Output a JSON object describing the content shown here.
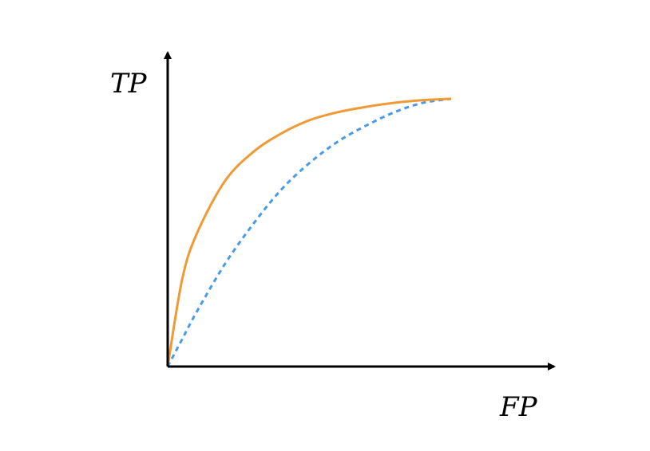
{
  "chart_data": {
    "type": "line",
    "title": "",
    "xlabel": "FP",
    "ylabel": "TP",
    "grid": false,
    "xlim": [
      0,
      1
    ],
    "ylim": [
      0,
      1
    ],
    "series": [
      {
        "style": "solid",
        "color": "#f09a35",
        "x": [
          0,
          0.05,
          0.1,
          0.2,
          0.3,
          0.4,
          0.5,
          0.6,
          0.7,
          0.8,
          0.9,
          1.0
        ],
        "y": [
          0,
          0.32,
          0.49,
          0.69,
          0.8,
          0.87,
          0.92,
          0.95,
          0.97,
          0.985,
          0.995,
          1.0
        ]
      },
      {
        "style": "dashed",
        "color": "#4a9be6",
        "x": [
          0,
          0.05,
          0.1,
          0.2,
          0.3,
          0.4,
          0.5,
          0.6,
          0.7,
          0.8,
          0.9,
          1.0
        ],
        "y": [
          0,
          0.1,
          0.2,
          0.38,
          0.53,
          0.66,
          0.76,
          0.84,
          0.9,
          0.95,
          0.985,
          1.0
        ]
      }
    ]
  }
}
